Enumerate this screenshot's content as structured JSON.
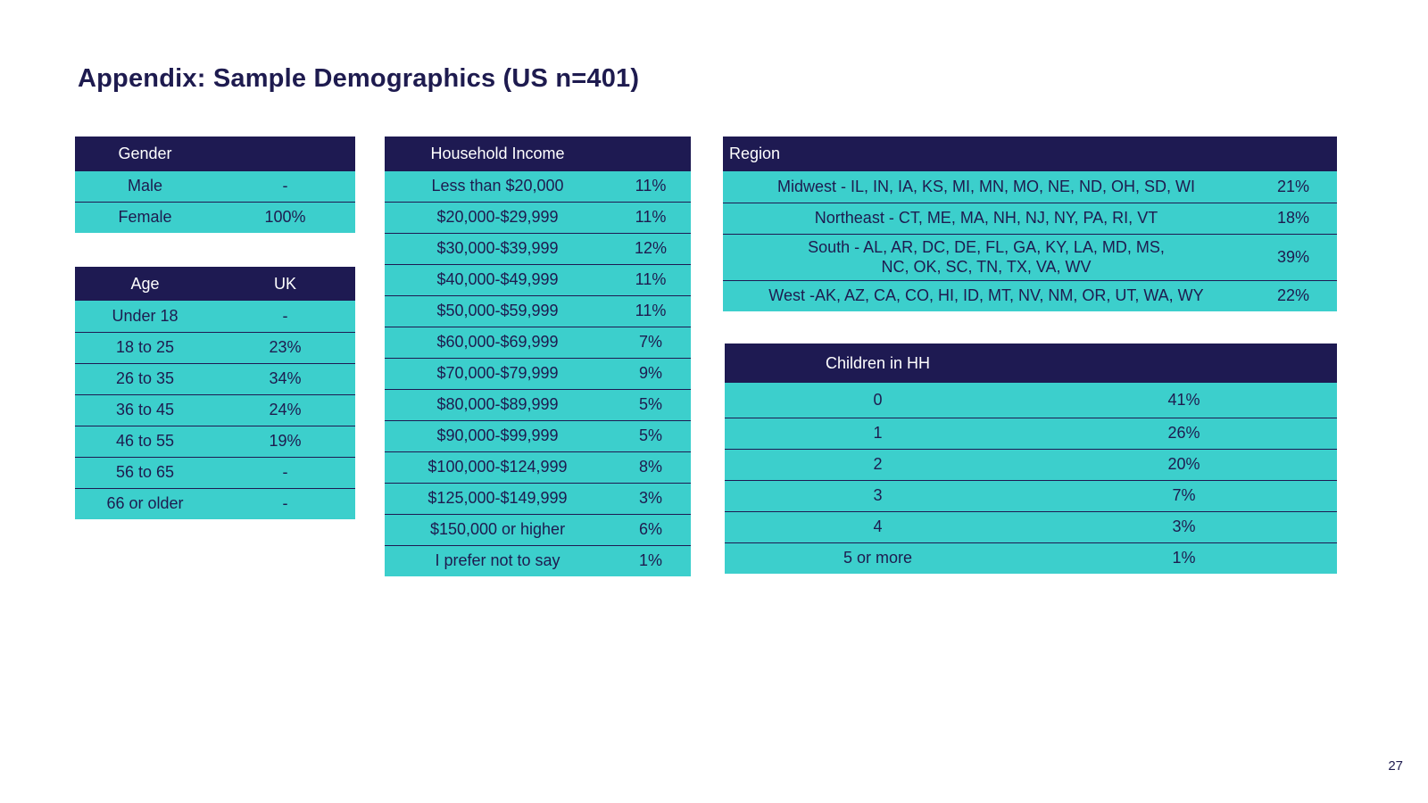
{
  "title": "Appendix: Sample Demographics (US n=401)",
  "page_number": "27",
  "gender": {
    "header": [
      "Gender",
      ""
    ],
    "rows": [
      [
        "Male",
        "-"
      ],
      [
        "Female",
        "100%"
      ]
    ]
  },
  "age": {
    "header": [
      "Age",
      "UK"
    ],
    "rows": [
      [
        "Under 18",
        "-"
      ],
      [
        "18 to 25",
        "23%"
      ],
      [
        "26 to 35",
        "34%"
      ],
      [
        "36 to 45",
        "24%"
      ],
      [
        "46 to 55",
        "19%"
      ],
      [
        "56 to 65",
        "-"
      ],
      [
        "66 or older",
        "-"
      ]
    ]
  },
  "income": {
    "header": [
      "Household Income",
      ""
    ],
    "rows": [
      [
        "Less than $20,000",
        "11%"
      ],
      [
        "$20,000-$29,999",
        "11%"
      ],
      [
        "$30,000-$39,999",
        "12%"
      ],
      [
        "$40,000-$49,999",
        "11%"
      ],
      [
        "$50,000-$59,999",
        "11%"
      ],
      [
        "$60,000-$69,999",
        "7%"
      ],
      [
        "$70,000-$79,999",
        "9%"
      ],
      [
        "$80,000-$89,999",
        "5%"
      ],
      [
        "$90,000-$99,999",
        "5%"
      ],
      [
        "$100,000-$124,999",
        "8%"
      ],
      [
        "$125,000-$149,999",
        "3%"
      ],
      [
        "$150,000 or higher",
        "6%"
      ],
      [
        "I prefer not to say",
        "1%"
      ]
    ]
  },
  "region": {
    "header": [
      "Region",
      ""
    ],
    "rows": [
      [
        "Midwest - IL, IN, IA, KS, MI, MN, MO, NE, ND, OH, SD, WI",
        "21%"
      ],
      [
        "Northeast - CT, ME, MA, NH, NJ, NY, PA, RI, VT",
        "18%"
      ],
      [
        "South - AL, AR, DC, DE, FL, GA, KY, LA, MD, MS,",
        "NC, OK, SC, TN, TX, VA, WV",
        "39%"
      ],
      [
        "West -AK, AZ, CA, CO, HI, ID, MT, NV, NM, OR, UT, WA, WY",
        "22%"
      ]
    ]
  },
  "children": {
    "header": [
      "Children in HH",
      ""
    ],
    "rows": [
      [
        "0",
        "41%"
      ],
      [
        "1",
        "26%"
      ],
      [
        "2",
        "20%"
      ],
      [
        "3",
        "7%"
      ],
      [
        "4",
        "3%"
      ],
      [
        "5 or more",
        "1%"
      ]
    ]
  },
  "colors": {
    "header_bg": "#1e1a52",
    "cell_bg": "#3ccfcc",
    "text": "#1e1b4f"
  }
}
